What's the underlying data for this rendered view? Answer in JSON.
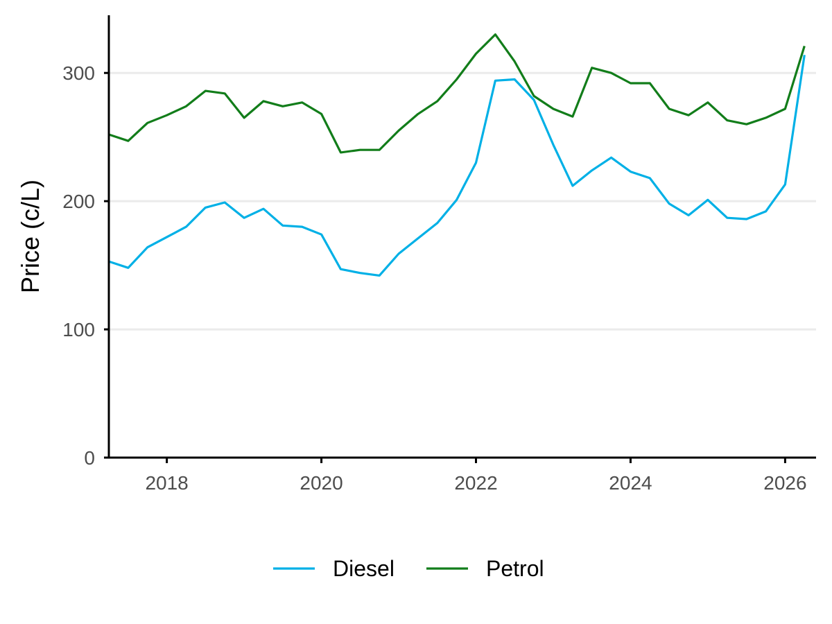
{
  "chart_data": {
    "type": "line",
    "title": "",
    "xlabel": "",
    "ylabel": "Price (c/L)",
    "xlim": [
      2017.25,
      2026.4
    ],
    "ylim": [
      0,
      345
    ],
    "x_ticks": [
      2018,
      2020,
      2022,
      2024,
      2026
    ],
    "x_tick_labels": [
      "2018",
      "2020",
      "2022",
      "2024",
      "2026"
    ],
    "y_ticks": [
      0,
      100,
      200,
      300
    ],
    "y_tick_labels": [
      "0",
      "100",
      "200",
      "300"
    ],
    "grid": "horizontal-major",
    "legend_position": "bottom",
    "x": [
      2017.25,
      2017.5,
      2017.75,
      2018.0,
      2018.25,
      2018.5,
      2018.75,
      2019.0,
      2019.25,
      2019.5,
      2019.75,
      2020.0,
      2020.25,
      2020.5,
      2020.75,
      2021.0,
      2021.25,
      2021.5,
      2021.75,
      2022.0,
      2022.25,
      2022.5,
      2022.75,
      2023.0,
      2023.25,
      2023.5,
      2023.75,
      2024.0,
      2024.25,
      2024.5,
      2024.75,
      2025.0,
      2025.25,
      2025.5,
      2025.75,
      2026.0,
      2026.25
    ],
    "series": [
      {
        "name": "Diesel",
        "color": "#00b0e6",
        "values": [
          153,
          148,
          164,
          172,
          180,
          195,
          199,
          187,
          194,
          181,
          180,
          174,
          147,
          144,
          142,
          159,
          171,
          183,
          201,
          230,
          294,
          295,
          279,
          244,
          212,
          224,
          234,
          223,
          218,
          198,
          189,
          201,
          187,
          186,
          192,
          213,
          314
        ]
      },
      {
        "name": "Petrol",
        "color": "#127d1a",
        "values": [
          252,
          247,
          261,
          267,
          274,
          286,
          284,
          265,
          278,
          274,
          277,
          268,
          238,
          240,
          240,
          255,
          268,
          278,
          295,
          315,
          330,
          309,
          282,
          272,
          266,
          304,
          300,
          292,
          292,
          272,
          267,
          277,
          263,
          260,
          265,
          272,
          321
        ]
      }
    ]
  }
}
